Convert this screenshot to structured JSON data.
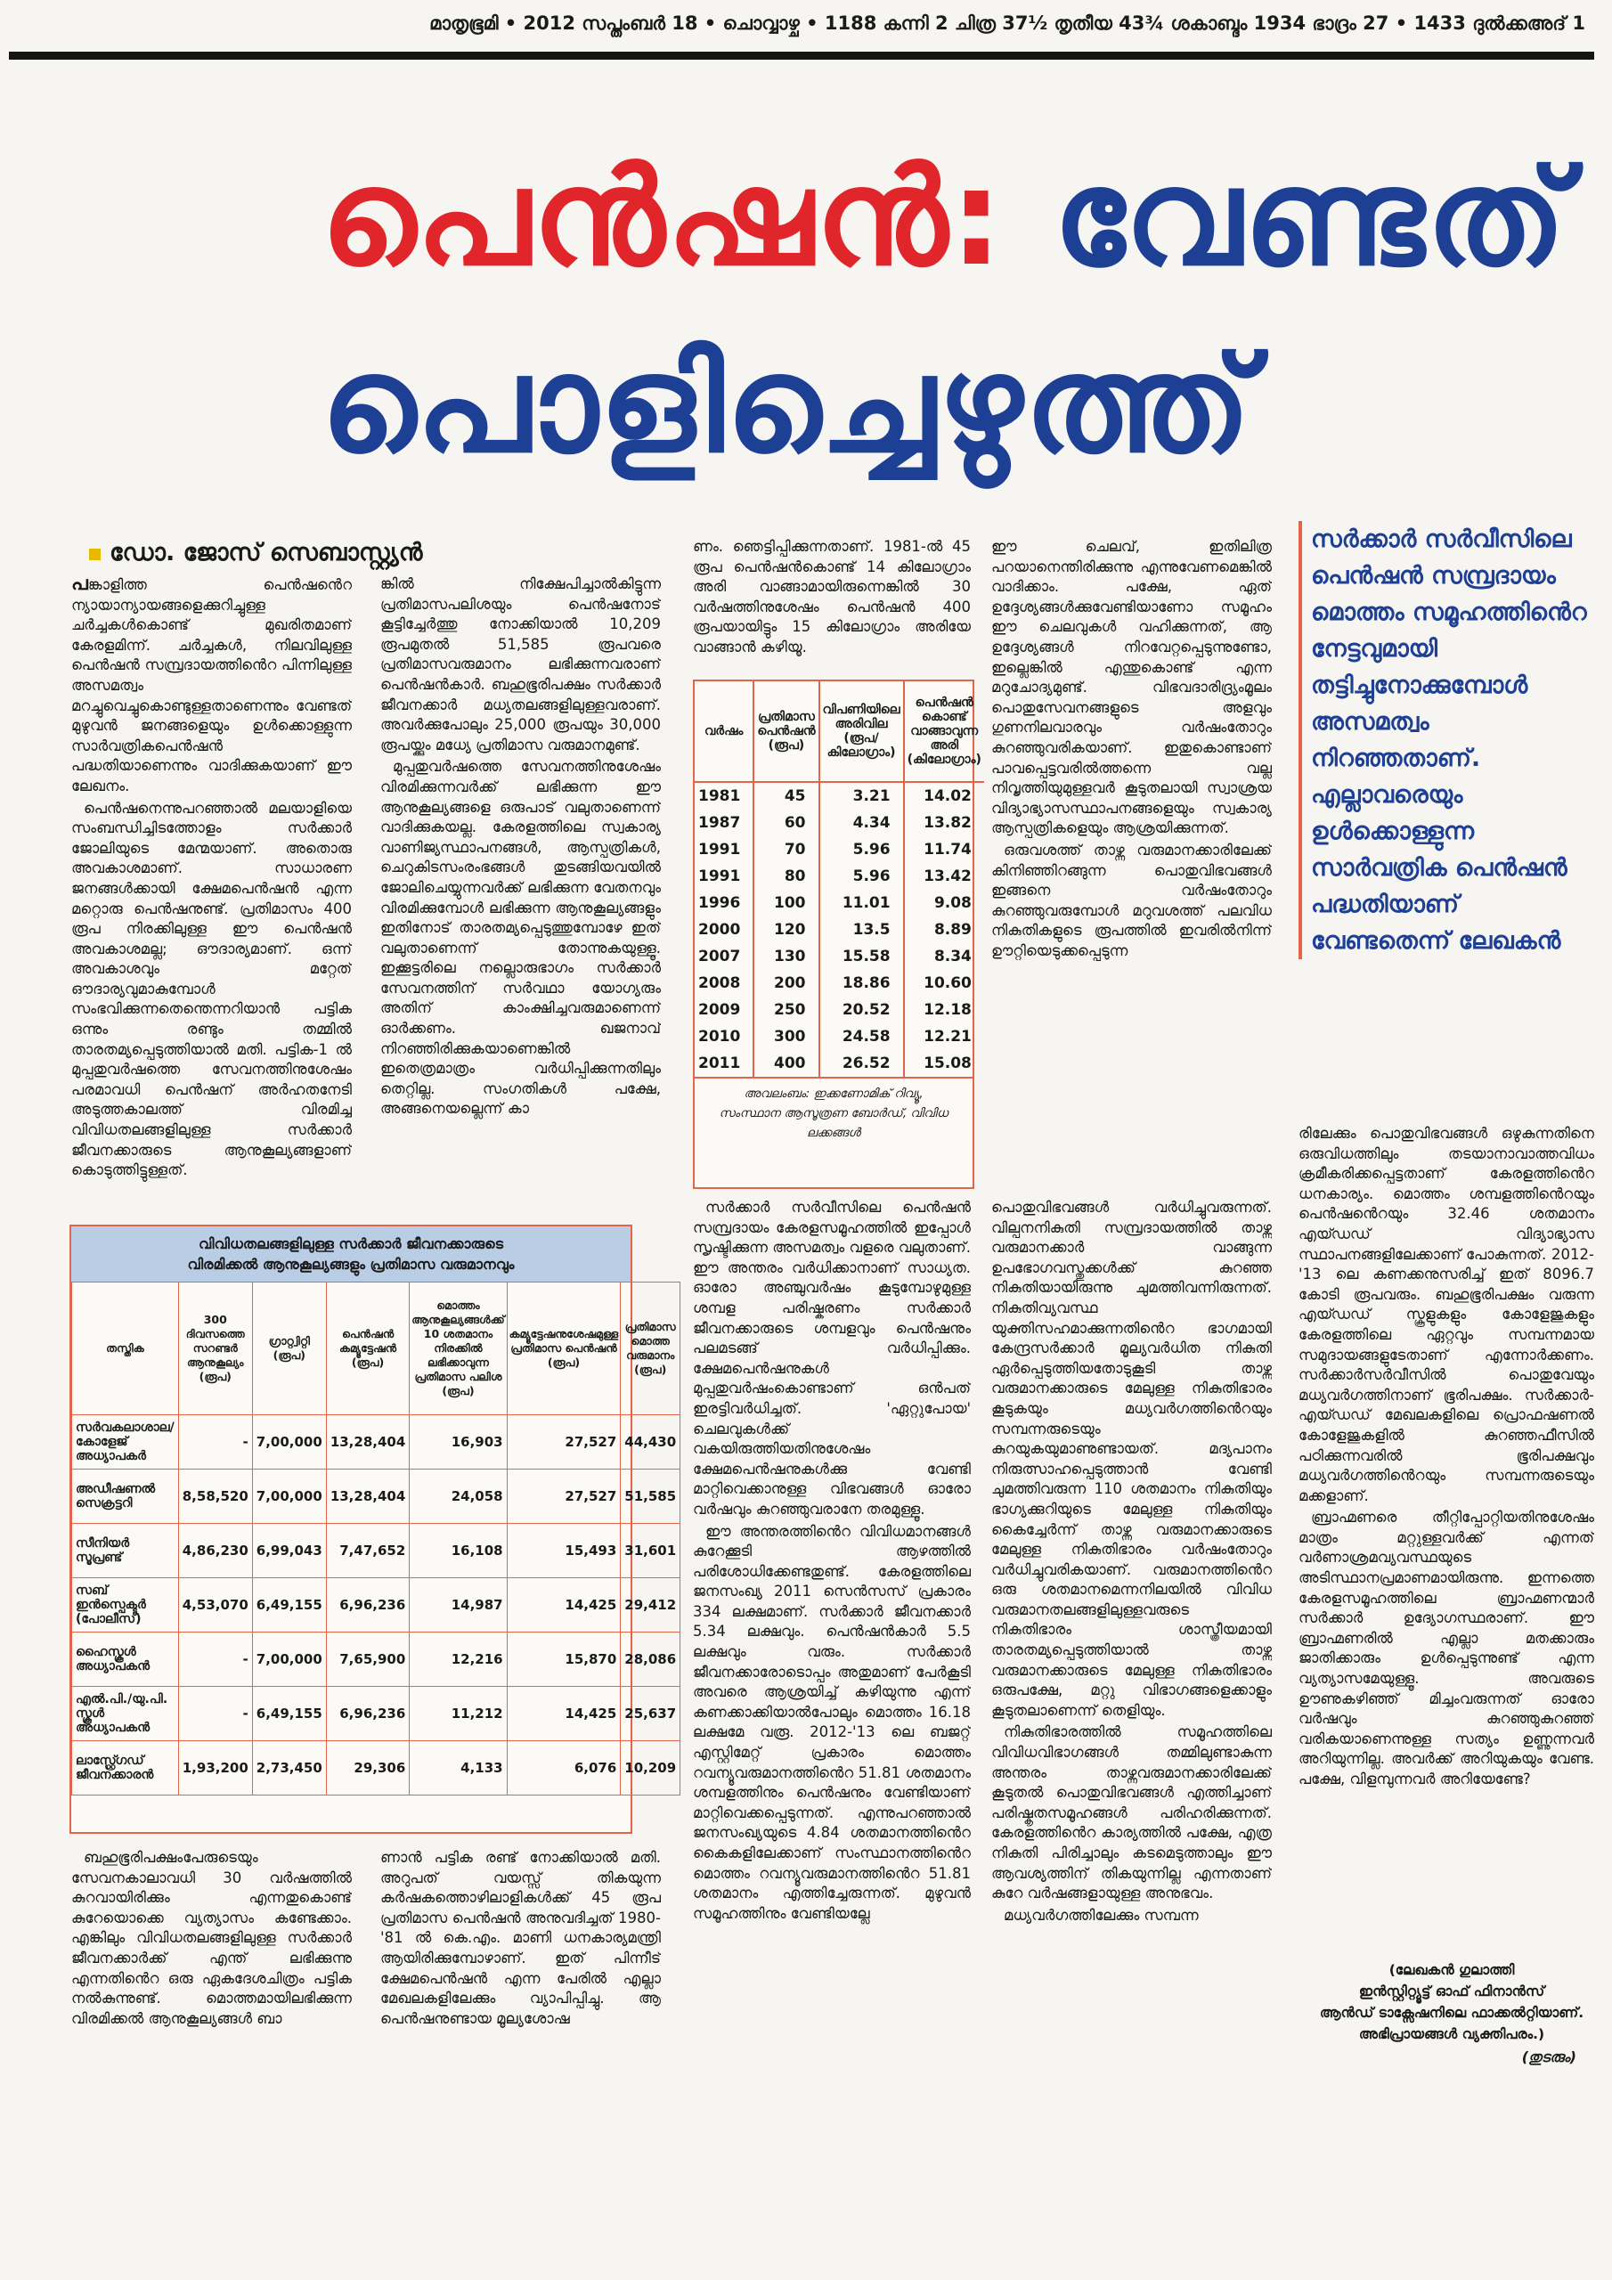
{
  "dateline": "മാതൃഭൂമി • 2012 സപ്തംബർ 18 • ചൊവ്വാഴ്ച • 1188 കന്നി 2 ചിത്ര 37½ തൃതീയ 43¾ ശകാബ്ദം 1934 ഭാദ്രം 27 • 1433 ദുൽക്കഅദ് 1",
  "headline": {
    "part1_red": "പെൻഷൻ:",
    "part1_blue": "വേണ്ടത്",
    "line2": "പൊളിച്ചെഴുത്ത്",
    "colors": {
      "red": "#e0262a",
      "blue": "#1d3f94"
    }
  },
  "byline": "ഡോ. ജോസ് സെബാസ്റ്റ്യൻ",
  "pull_quote": "സർക്കാർ സർവീസിലെ പെൻഷൻ സമ്പ്രദായം മൊത്തം സമൂഹത്തിൻെറ നേട്ടവുമായി തട്ടിച്ചുനോക്കുമ്പോൾ അസമത്വം നിറഞ്ഞതാണ്. എല്ലാവരെയും ഉൾക്കൊള്ളുന്ന സാർവത്രിക പെൻഷൻ പദ്ധതിയാണ് വേണ്ടതെന്ന് ലേഖകൻ",
  "columns": {
    "col1_top": {
      "drop": "പ",
      "p1": "ങ്കാളിത്ത പെൻഷൻെറ ന്യായാന്യായങ്ങളെക്കുറിച്ചുള്ള ചർച്ചകൾകൊണ്ട് മുഖരിതമാണ് കേരളമിന്ന്. ചർച്ചകൾ, നിലവിലുള്ള പെൻഷൻ സമ്പ്രദായത്തിൻെറ പിന്നിലുള്ള അസമത്വം മറച്ചുവെച്ചുകൊണ്ടുള്ളതാണെന്നും വേണ്ടത് മുഴുവൻ ജനങ്ങളെയും ഉൾക്കൊള്ളുന്ന സാർവത്രികപെൻഷൻ പദ്ധതിയാണെന്നും വാദിക്കുകയാണ് ഈ ലേഖനം.",
      "p2": "പെൻഷനെന്നുപറഞ്ഞാൽ മലയാളിയെ സംബന്ധിച്ചിടത്തോളം സർക്കാർ ജോലിയുടെ മേന്മയാണ്. അതൊരു അവകാശമാണ്. സാധാരണ ജനങ്ങൾക്കായി ക്ഷേമപെൻഷൻ എന്ന മറ്റൊരു പെൻഷനുണ്ട്. പ്രതിമാസം 400 രൂപ നിരക്കിലുള്ള ഈ പെൻഷൻ അവകാശമല്ല; ഔദാര്യമാണ്. ഒന്ന് അവകാശവും മറ്റേത് ഔദാര്യവുമാകുമ്പോൾ സംഭവിക്കുന്നതെന്തെന്നറിയാൻ പട്ടിക ഒന്നും രണ്ടും തമ്മിൽ താരതമ്യപ്പെടുത്തിയാൽ മതി. പട്ടിക-1 ൽ മുപ്പതുവർഷത്തെ സേവനത്തിനുശേഷം പരമാവധി പെൻഷന് അർഹതനേടി അടുത്തകാലത്ത് വിരമിച്ച വിവിധതലങ്ങളിലുള്ള സർക്കാർ ജീവനക്കാരുടെ ആനുകൂല്യങ്ങളാണ് കൊടുത്തിട്ടുള്ളത്."
    },
    "col2_top": {
      "p1": "ങ്കിൽ നിക്ഷേപിച്ചാൽകിട്ടുന്ന പ്രതിമാസപലിശയും പെൻഷനോട് കൂട്ടിച്ചേർത്തു നോക്കിയാൽ 10,209 രൂപമുതൽ 51,585 രൂപവരെ പ്രതിമാസവരുമാനം ലഭിക്കുന്നവരാണ് പെൻഷൻകാർ. ബഹുഭൂരിപക്ഷം സർക്കാർ ജീവനക്കാർ മധ്യതലങ്ങളിലുള്ളവരാണ്. അവർക്കുപോലും 25,000 രൂപയും 30,000 രൂപയ്ക്കും മധ്യേ പ്രതിമാസ വരുമാനമുണ്ട്.",
      "p2": "മുപ്പതുവർഷത്തെ സേവനത്തിനുശേഷം വിരമിക്കുന്നവർക്ക് ലഭിക്കുന്ന ഈ ആനുകൂല്യങ്ങളെ ഒരുപാട് വലുതാണെന്ന് വാദിക്കുകയല്ല. കേരളത്തിലെ സ്വകാര്യ വാണിജ്യസ്ഥാപനങ്ങൾ, ആസ്പത്രികൾ, ചെറുകിടസംരംഭങ്ങൾ തുടങ്ങിയവയിൽ ജോലിചെയ്യുന്നവർക്ക് ലഭിക്കുന്ന വേതനവും വിരമിക്കുമ്പോൾ ലഭിക്കുന്ന ആനുകൂല്യങ്ങളും ഇതിനോട് താരതമ്യപ്പെടുത്തുമ്പോഴേ ഇത് വലുതാണെന്ന് തോന്നുകയുള്ളൂ. ഇക്കൂട്ടരിലെ നല്ലൊരുഭാഗം സർക്കാർ സേവനത്തിന് സർവഥാ യോഗ്യരും അതിന് കാംക്ഷിച്ചവരുമാണെന്ന് ഓർക്കണം. ഖജനാവ് നിറഞ്ഞിരിക്കുകയാണെങ്കിൽ ഇതെത്രമാത്രം വർധിപ്പിക്കുന്നതിലും തെറ്റില്ല. സംഗതികൾ പക്ഷേ, അങ്ങനെയല്ലെന്ന് കാ"
    },
    "col3_top": "ണം. ഞെട്ടിപ്പിക്കുന്നതാണ്. 1981-ൽ 45 രൂപ പെൻഷൻകൊണ്ട് 14 കിലോഗ്രാം അരി വാങ്ങാമായിരുന്നെങ്കിൽ 30 വർഷത്തിനുശേഷം പെൻഷൻ 400 രൂപയായിട്ടും 15 കിലോഗ്രാം അരിയേ വാങ്ങാൻ കഴിയൂ.",
    "col4_top": {
      "p1": "ഈ ചെലവ്, ഇതിലിത്ര പറയാനെന്തിരിക്കുന്നു എന്നുവേണമെങ്കിൽ വാദിക്കാം. പക്ഷേ, ഏത് ഉദ്ദേശ്യങ്ങൾക്കുവേണ്ടിയാണോ സമൂഹം ഈ ചെലവുകൾ വഹിക്കുന്നത്, ആ ഉദ്ദേശ്യങ്ങൾ നിറവേറ്റപ്പെടുന്നുണ്ടോ, ഇല്ലെങ്കിൽ എന്തുകൊണ്ട് എന്ന മറുചോദ്യമുണ്ട്. വിഭവദാരിദ്ര്യംമൂലം പൊതുസേവനങ്ങളുടെ അളവും ഗുണനിലവാരവും വർഷംതോറും കുറഞ്ഞുവരികയാണ്. ഇതുകൊണ്ടാണ് പാവപ്പെട്ടവരിൽത്തന്നെ വല്ല നിവൃത്തിയുമുള്ളവർ കൂടുതലായി സ്വാശ്രയ വിദ്യാഭ്യാസസ്ഥാപനങ്ങളെയും സ്വകാര്യ ആസ്പത്രികളെയും ആശ്രയിക്കുന്നത്.",
      "p2": "ഒരുവശത്ത് താഴ്ന്ന വരുമാനക്കാരിലേക്ക് കിനിഞ്ഞിറങ്ങുന്ന പൊതുവിഭവങ്ങൾ ഇങ്ങനെ വർഷംതോറും കുറഞ്ഞുവരുമ്പോൾ മറുവശത്ത് പലവിധ നികുതികളുടെ രൂപത്തിൽ ഇവരിൽനിന്ന് ഊറ്റിയെടുക്കപ്പെടുന്ന"
    },
    "col1_bottom": "ബഹുഭൂരിപക്ഷംപേരുടെയും സേവനകാലാവധി 30 വർഷത്തിൽ കുറവായിരിക്കും എന്നതുകൊണ്ട് കുറേയൊക്കെ വ്യത്യാസം കണ്ടേക്കാം. എങ്കിലും വിവിധതലങ്ങളിലുള്ള സർക്കാർ ജീവനക്കാർക്ക് എന്ത് ലഭിക്കുന്നു എന്നതിൻെറ ഒരു ഏകദേശചിത്രം പട്ടിക നൽകുന്നുണ്ട്. മൊത്തമായിലഭിക്കുന്ന വിരമിക്കൽ ആനുകൂല്യങ്ങൾ ബാ",
    "col2_bottom": "ണാൻ പട്ടിക രണ്ട് നോക്കിയാൽ മതി. അറുപത് വയസ്സ് തികയുന്ന കർഷകത്തൊഴിലാളികൾക്ക് 45 രൂപ പ്രതിമാസ പെൻഷൻ അനുവദിച്ചത് 1980-'81 ൽ കെ.എം. മാണി ധനകാര്യമന്ത്രി ആയിരിക്കുമ്പോഴാണ്. ഇത് പിന്നീട് ക്ഷേമപെൻഷൻ എന്ന പേരിൽ എല്ലാ മേഖലകളിലേക്കും വ്യാപിപ്പിച്ചു. ആ പെൻഷനുണ്ടായ മൂല്യശോഷ",
    "col3_bottom": {
      "p1": "സർക്കാർ സർവീസിലെ പെൻഷൻ സമ്പ്രദായം കേരളസമൂഹത്തിൽ ഇപ്പോൾ സൃഷ്ടിക്കുന്ന അസമത്വം വളരെ വലുതാണ്. ഈ അന്തരം വർധിക്കാനാണ് സാധ്യത. ഓരോ അഞ്ചുവർഷം കൂടുമ്പോഴുമുള്ള ശമ്പള പരിഷ്കരണം സർക്കാർ ജീവനക്കാരുടെ ശമ്പളവും പെൻഷനും പലമടങ്ങ് വർധിപ്പിക്കും. ക്ഷേമപെൻഷനുകൾ മുപ്പതുവർഷംകൊണ്ടാണ് ഒൻപത് ഇരട്ടിവർധിച്ചത്. 'ഏറ്റുപോയ' ചെലവുകൾക്ക് വകയിരുത്തിയതിനുശേഷം ക്ഷേമപെൻഷനുകൾക്കു വേണ്ടി മാറ്റിവെക്കാനുള്ള വിഭവങ്ങൾ ഓരോ വർഷവും കുറഞ്ഞുവരാനേ തരമുള്ളൂ.",
      "p2": "ഈ അന്തരത്തിൻെറ വിവിധമാനങ്ങൾ കുറേക്കൂടി ആഴത്തിൽ പരിശോധിക്കേണ്ടതുണ്ട്. കേരളത്തിലെ ജനസംഖ്യ 2011 സെൻസസ് പ്രകാരം 334 ലക്ഷമാണ്. സർക്കാർ ജീവനക്കാർ 5.34 ലക്ഷവും. പെൻഷൻകാർ 5.5 ലക്ഷവും വരും. സർക്കാർ ജീവനക്കാരോടൊപ്പം അതുമാണ് പേർകൂടി അവരെ ആശ്രയിച്ച് കഴിയുന്നു എന്ന് കണക്കാക്കിയാൽപോലും മൊത്തം 16.18 ലക്ഷമേ വരൂ. 2012-'13 ലെ ബജറ്റ് എസ്റ്റിമേറ്റ് പ്രകാരം മൊത്തം റവന്യൂവരുമാനത്തിൻെറ 51.81 ശതമാനം ശമ്പളത്തിനും പെൻഷനും വേണ്ടിയാണ് മാറ്റിവെക്കപ്പെടുന്നത്. എന്നുപറഞ്ഞാൽ ജനസംഖ്യയുടെ 4.84 ശതമാനത്തിൻെറ കൈകളിലേക്കാണ് സംസ്ഥാനത്തിൻെറ മൊത്തം റവന്യൂവരുമാനത്തിൻെറ 51.81 ശതമാനം എത്തിച്ചേരുന്നത്. മുഴുവൻ സമൂഹത്തിനും വേണ്ടിയല്ലേ"
    },
    "col4_bottom": {
      "p1": "പൊതുവിഭവങ്ങൾ വർധിച്ചുവരുന്നത്. വില്പനനികുതി സമ്പ്രദായത്തിൽ താഴ്ന്ന വരുമാനക്കാർ വാങ്ങുന്ന ഉപഭോഗവസ്തുക്കൾക്ക് കുറഞ്ഞ നികുതിയായിരുന്നു ചുമത്തിവന്നിരുന്നത്. നികുതിവ്യവസ്ഥ യുക്തിസഹമാക്കുന്നതിൻെറ ഭാഗമായി കേന്ദ്രസർക്കാർ മൂല്യവർധിത നികുതി ഏർപ്പെടുത്തിയതോടുകൂടി താഴ്ന്ന വരുമാനക്കാരുടെ മേലുള്ള നികുതിഭാരം കൂടുകയും മധ്യവർഗത്തിൻെറയും സമ്പന്നരുടെയും കുറയുകയുമാണുണ്ടായത്. മദ്യപാനം നിരുത്സാഹപ്പെടുത്താൻ വേണ്ടി ചുമത്തിവരുന്ന 110 ശതമാനം നികുതിയും ഭാഗ്യക്കുറിയുടെ മേലുള്ള നികുതിയും കൈച്ചേർന്ന് താഴ്ന്ന വരുമാനക്കാരുടെ മേലുള്ള നികുതിഭാരം വർഷംതോറും വർധിച്ചുവരികയാണ്. വരുമാനത്തിൻെറ ഒരു ശതമാനമെന്നനിലയിൽ വിവിധ വരുമാനതലങ്ങളിലുള്ളവരുടെ നികുതിഭാരം ശാസ്ത്രീയമായി താരതമ്യപ്പെടുത്തിയാൽ താഴ്ന്ന വരുമാനക്കാരുടെ മേലുള്ള നികുതിഭാരം ഒരുപക്ഷേ, മറ്റു വിഭാഗങ്ങളെക്കാളും കൂടുതലാണെന്ന് തെളിയും.",
      "p2": "നികുതിഭാരത്തിൽ സമൂഹത്തിലെ വിവിധവിഭാഗങ്ങൾ തമ്മിലുണ്ടാകുന്ന അന്തരം താഴ്ന്നവരുമാനക്കാരിലേക്ക് കൂടുതൽ പൊതുവിഭവങ്ങൾ എത്തിച്ചാണ് പരിഷ്കൃതസമൂഹങ്ങൾ പരിഹരിക്കുന്നത്. കേരളത്തിൻെറ കാര്യത്തിൽ പക്ഷേ, എത്ര നികുതി പിരിച്ചാലും കടമെടുത്താലും ഈ ആവശ്യത്തിന് തികയുന്നില്ല എന്നതാണ് കുറേ വർഷങ്ങളായുള്ള അനുഭവം.",
      "p3": "മധ്യവർഗത്തിലേക്കും സമ്പന്ന"
    },
    "col5": {
      "p1": "രിലേക്കും പൊതുവിഭവങ്ങൾ ഒഴുകുന്നതിനെ ഒരുവിധത്തിലും തടയാനാവാത്തവിധം ക്രമീകരിക്കപ്പെട്ടതാണ് കേരളത്തിൻെറ ധനകാര്യം. മൊത്തം ശമ്പളത്തിൻെറയും പെൻഷൻെറയും 32.46 ശതമാനം എയ്ഡഡ് വിദ്യാഭ്യാസ സ്ഥാപനങ്ങളിലേക്കാണ് പോകുന്നത്. 2012-'13 ലെ കണക്കനുസരിച്ച് ഇത് 8096.7 കോടി രൂപവരും. ബഹുഭൂരിപക്ഷം വരുന്ന എയ്ഡഡ് സ്കൂളുകളും കോളേജുകളും കേരളത്തിലെ ഏറ്റവും സമ്പന്നമായ സമുദായങ്ങളുടേതാണ് എന്നോർക്കണം. സർക്കാർസർവീസിൽ പൊതുവേയും മധ്യവർഗത്തിനാണ് ഭൂരിപക്ഷം. സർക്കാർ-എയ്ഡഡ് മേഖലകളിലെ പ്രൊഫഷണൽ കോളേജുകളിൽ കുറഞ്ഞഫീസിൽ പഠിക്കുന്നവരിൽ ഭൂരിപക്ഷവും മധ്യവർഗത്തിൻെറയും സമ്പന്നരുടെയും മക്കളാണ്.",
      "p2": "ബ്രാഹ്മണരെ തീറ്റിപ്പോറ്റിയതിനുശേഷം മാത്രം മറ്റുള്ളവർക്ക് എന്നത് വർണാശ്രമവ്യവസ്ഥയുടെ അടിസ്ഥാനപ്രമാണമായിരുന്നു. ഇന്നത്തെ കേരളസമൂഹത്തിലെ ബ്രാഹ്മണന്മാർ സർക്കാർ ഉദ്യോഗസ്ഥരാണ്. ഈ ബ്രാഹ്മണരിൽ എല്ലാ മതക്കാരും ജാതിക്കാരും ഉൾപ്പെടുന്നുണ്ട് എന്ന വ്യത്യാസമേയുള്ളൂ. അവരുടെ ഊണുകഴിഞ്ഞ് മിച്ചംവരുന്നത് ഓരോ വർഷവും കുറഞ്ഞുകുറഞ്ഞ് വരികയാണെന്നുള്ള സത്യം ഉണ്ണുന്നവർ അറിയുന്നില്ല. അവർക്ക് അറിയുകയും വേണ്ട. പക്ഷേ, വിളമ്പുന്നവർ അറിയേണ്ടേ?"
    }
  },
  "author_note": {
    "line1": "(ലേഖകൻ ഗുലാത്തി",
    "line2": "ഇൻസ്റ്റിറ്റ്യൂട്ട് ഓഫ് ഫിനാൻസ്",
    "line3": "ആൻഡ് ടാക്സേഷനിലെ ഫാക്കൽറ്റിയാണ്.",
    "line4": "അഭിപ്രായങ്ങൾ വ്യക്തിപരം.)"
  },
  "continued": "(തുടരും)",
  "table_rice": {
    "headers": [
      "വർഷം",
      "പ്രതിമാസ പെൻഷൻ (രൂപ)",
      "വിപണിയിലെ അരിവില (രൂപ/ കിലോഗ്രാം)",
      "പെൻഷൻ കൊണ്ട് വാങ്ങാവുന്ന അരി (കിലോഗ്രാം)"
    ],
    "rows": [
      [
        "1981",
        "45",
        "3.21",
        "14.02"
      ],
      [
        "1987",
        "60",
        "4.34",
        "13.82"
      ],
      [
        "1991",
        "70",
        "5.96",
        "11.74"
      ],
      [
        "1991",
        "80",
        "5.96",
        "13.42"
      ],
      [
        "1996",
        "100",
        "11.01",
        "9.08"
      ],
      [
        "2000",
        "120",
        "13.5",
        "8.89"
      ],
      [
        "2007",
        "130",
        "15.58",
        "8.34"
      ],
      [
        "2008",
        "200",
        "18.86",
        "10.60"
      ],
      [
        "2009",
        "250",
        "20.52",
        "12.18"
      ],
      [
        "2010",
        "300",
        "24.58",
        "12.21"
      ],
      [
        "2011",
        "400",
        "26.52",
        "15.08"
      ]
    ],
    "source_line1": "അവലംബം: ഇക്കണോമിക് റിവ്യൂ,",
    "source_line2": "സംസ്ഥാന ആസൂത്രണ ബോർഡ്, വിവിധ ലക്കങ്ങൾ"
  },
  "table_benefits": {
    "title_line1": "വിവിധതലങ്ങളിലുള്ള സർക്കാർ ജീവനക്കാരുടെ",
    "title_line2": "വിരമിക്കൽ ആനുകൂല്യങ്ങളും പ്രതിമാസ വരുമാനവും",
    "headers": [
      "തസ്തിക",
      "300 ദിവസത്തെ സറണ്ടർ ആനുകൂല്യം (രൂപ)",
      "ഗ്രാറ്റ്വിറ്റി (രൂപ)",
      "പെൻഷൻ കമ്യൂട്ടേഷൻ (രൂപ)",
      "മൊത്തം ആനുകൂല്യങ്ങൾക്ക് 10 ശതമാനം നിരക്കിൽ ലഭിക്കാവുന്ന പ്രതിമാസ പലിശ (രൂപ)",
      "കമ്യൂട്ടേഷനുശേഷമുള്ള പ്രതിമാസ പെൻഷൻ (രൂപ)",
      "പ്രതിമാസ മൊത്ത വരുമാനം (രൂപ)"
    ],
    "rows": [
      [
        "സർവകലാശാല/ കോളേജ് അധ്യാപകർ",
        "-",
        "7,00,000",
        "13,28,404",
        "16,903",
        "27,527",
        "44,430"
      ],
      [
        "അഡീഷണൽ സെക്രട്ടറി",
        "8,58,520",
        "7,00,000",
        "13,28,404",
        "24,058",
        "27,527",
        "51,585"
      ],
      [
        "സീനിയർ സൂപ്രണ്ട്",
        "4,86,230",
        "6,99,043",
        "7,47,652",
        "16,108",
        "15,493",
        "31,601"
      ],
      [
        "സബ് ഇൻസ്പെക്ടർ (പോലീസ്)",
        "4,53,070",
        "6,49,155",
        "6,96,236",
        "14,987",
        "14,425",
        "29,412"
      ],
      [
        "ഹൈസ്കൂൾ അധ്യാപകൻ",
        "-",
        "7,00,000",
        "7,65,900",
        "12,216",
        "15,870",
        "28,086"
      ],
      [
        "എൽ.പി./യു.പി. സ്കൂൾ അധ്യാപകൻ",
        "-",
        "6,49,155",
        "6,96,236",
        "11,212",
        "14,425",
        "25,637"
      ],
      [
        "ലാസ്റ്റ്ഗ്രേഡ് ജീവനക്കാരൻ",
        "1,93,200",
        "2,73,450",
        "29,306",
        "4,133",
        "6,076",
        "10,209"
      ]
    ],
    "colors": {
      "header_band": "#b9cde4",
      "border": "#e4644a"
    }
  }
}
